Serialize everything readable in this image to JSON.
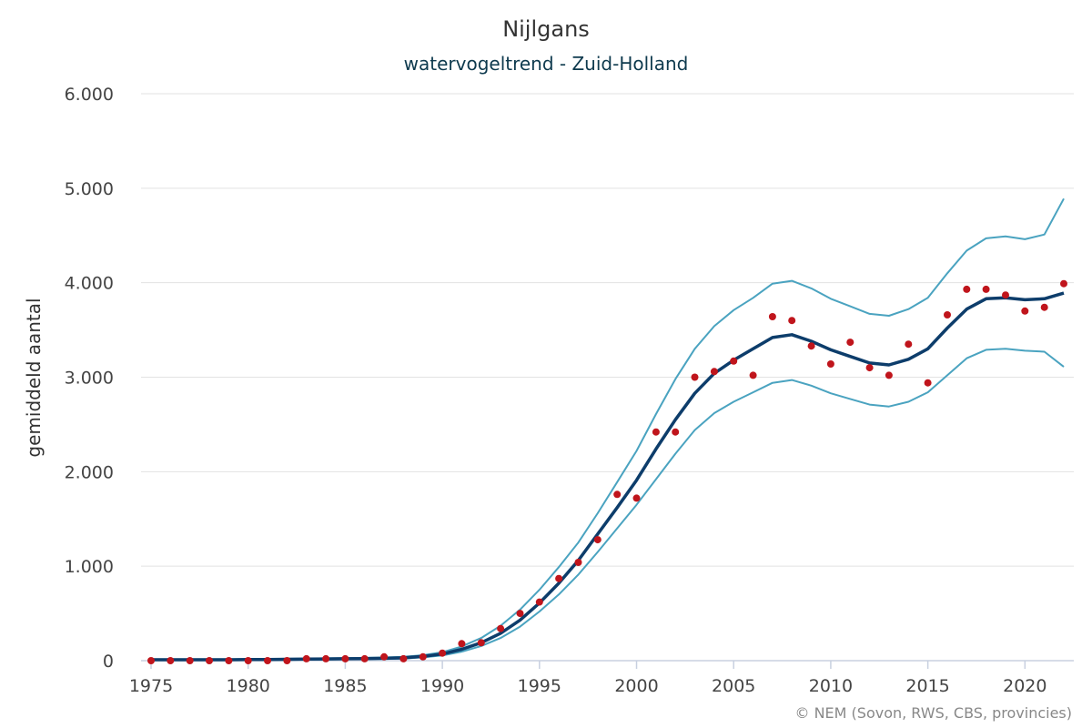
{
  "chart_data": {
    "type": "line",
    "title": "Nijlgans",
    "subtitle": "watervogeltrend - Zuid-Holland",
    "ylabel": "gemiddeld aantal",
    "xlabel": "",
    "xlim": [
      1975,
      2022
    ],
    "ylim": [
      0,
      6000
    ],
    "x_ticks": [
      1975,
      1980,
      1985,
      1990,
      1995,
      2000,
      2005,
      2010,
      2015,
      2020
    ],
    "x_tick_labels": [
      "1975",
      "1980",
      "1985",
      "1990",
      "1995",
      "2000",
      "2005",
      "2010",
      "2015",
      "2020"
    ],
    "y_ticks": [
      0,
      1000,
      2000,
      3000,
      4000,
      5000,
      6000
    ],
    "y_tick_labels": [
      "0",
      "1.000",
      "2.000",
      "3.000",
      "4.000",
      "5.000",
      "6.000"
    ],
    "grid": true,
    "credits": "© NEM (Sovon, RWS, CBS, provincies)",
    "colors": {
      "trend": "#0d3d6b",
      "bounds": "#4aa3c0",
      "points": "#c0151c",
      "grid": "#e2e2e2"
    },
    "x": [
      1975,
      1976,
      1977,
      1978,
      1979,
      1980,
      1981,
      1982,
      1983,
      1984,
      1985,
      1986,
      1987,
      1988,
      1989,
      1990,
      1991,
      1992,
      1993,
      1994,
      1995,
      1996,
      1997,
      1998,
      1999,
      2000,
      2001,
      2002,
      2003,
      2004,
      2005,
      2006,
      2007,
      2008,
      2009,
      2010,
      2011,
      2012,
      2013,
      2014,
      2015,
      2016,
      2017,
      2018,
      2019,
      2020,
      2021,
      2022
    ],
    "series": [
      {
        "role": "trend",
        "values": [
          10,
          10,
          10,
          10,
          10,
          12,
          12,
          14,
          16,
          18,
          20,
          22,
          25,
          30,
          45,
          70,
          120,
          190,
          290,
          430,
          610,
          820,
          1060,
          1340,
          1620,
          1910,
          2240,
          2550,
          2830,
          3040,
          3180,
          3300,
          3420,
          3450,
          3380,
          3290,
          3220,
          3150,
          3130,
          3190,
          3300,
          3520,
          3720,
          3830,
          3840,
          3820,
          3830,
          3890
        ]
      },
      {
        "role": "upper bound",
        "values": [
          15,
          15,
          15,
          15,
          15,
          17,
          17,
          20,
          22,
          25,
          28,
          30,
          34,
          40,
          58,
          90,
          150,
          240,
          370,
          540,
          750,
          990,
          1250,
          1560,
          1890,
          2220,
          2610,
          2980,
          3300,
          3540,
          3710,
          3840,
          3990,
          4020,
          3940,
          3830,
          3750,
          3670,
          3650,
          3720,
          3840,
          4100,
          4340,
          4470,
          4490,
          4460,
          4510,
          4890
        ]
      },
      {
        "role": "lower bound",
        "values": [
          5,
          5,
          5,
          5,
          5,
          7,
          7,
          8,
          10,
          12,
          14,
          15,
          18,
          22,
          35,
          55,
          95,
          155,
          240,
          360,
          520,
          700,
          910,
          1150,
          1400,
          1650,
          1920,
          2190,
          2440,
          2620,
          2740,
          2840,
          2940,
          2970,
          2910,
          2830,
          2770,
          2710,
          2690,
          2740,
          2840,
          3020,
          3200,
          3290,
          3300,
          3280,
          3270,
          3110
        ]
      },
      {
        "role": "counts",
        "values": [
          0,
          0,
          0,
          0,
          0,
          0,
          0,
          0,
          20,
          20,
          20,
          20,
          40,
          20,
          40,
          80,
          180,
          190,
          340,
          500,
          620,
          870,
          1040,
          1280,
          1760,
          1720,
          2420,
          2420,
          3000,
          3060,
          3170,
          3020,
          3640,
          3600,
          3330,
          3140,
          3370,
          3100,
          3020,
          3350,
          2940,
          3660,
          3930,
          3930,
          3870,
          3700,
          3740,
          3990
        ]
      }
    ]
  }
}
